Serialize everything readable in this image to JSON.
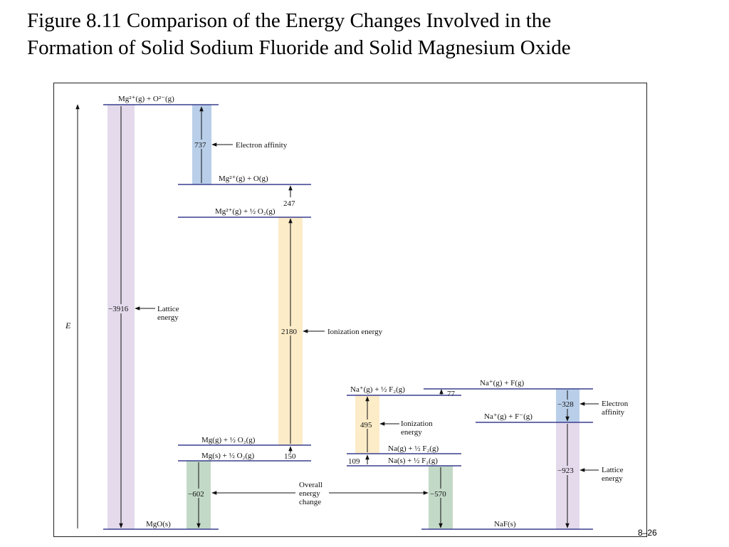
{
  "title": {
    "line1": "Figure 8.11  Comparison of the Energy Changes Involved in the",
    "line2": "Formation of Solid Sodium Fluoride and Solid Magnesium Oxide"
  },
  "axis_label": "E",
  "page_number": "8–26",
  "mgo": {
    "levels": {
      "top": "Mg²⁺(g) + O²⁻(g)",
      "mg2_o": "Mg²⁺(g) + O(g)",
      "mg2_half_o2": "Mg²⁺(g) + ½ O₂(g)",
      "mg_g": "Mg(g) + ½ O₂(g)",
      "mg_s": "Mg(s) + ½ O₂(g)",
      "product": "MgO(s)"
    },
    "values": {
      "electron_affinity": "737",
      "o2_dissociation": "247",
      "ionization": "2180",
      "sublimation": "150",
      "lattice": "−3916",
      "overall": "−602"
    },
    "labels": {
      "electron_affinity": "Electron affinity",
      "ionization": "Ionization energy",
      "lattice_1": "Lattice",
      "lattice_2": "energy"
    }
  },
  "naf": {
    "levels": {
      "na_plus_half_f2": "Na⁺(g) + ½ F₂(g)",
      "na_plus_f": "Na⁺(g) + F(g)",
      "na_plus_f_minus": "Na⁺(g) + F⁻(g)",
      "na_g": "Na(g) + ½ F₂(g)",
      "na_s": "Na(s) + ½ F₂(g)",
      "product": "NaF(s)"
    },
    "values": {
      "f2_dissociation": "77",
      "ionization": "495",
      "sublimation": "109",
      "electron_affinity": "−328",
      "lattice": "−923",
      "overall": "−570"
    },
    "labels": {
      "ionization_1": "Ionization",
      "ionization_2": "energy",
      "electron_affinity_1": "Electron",
      "electron_affinity_2": "affinity",
      "lattice_1": "Lattice",
      "lattice_2": "energy"
    }
  },
  "overall_label": {
    "line1": "Overall",
    "line2": "energy",
    "line3": "change"
  },
  "colors": {
    "level_line": "#3a3f8f",
    "lattice_band": "#e4daec",
    "electron_affinity_band": "#b9cfe9",
    "ionization_band": "#fcecc8",
    "overall_band": "#c3d9c7"
  }
}
